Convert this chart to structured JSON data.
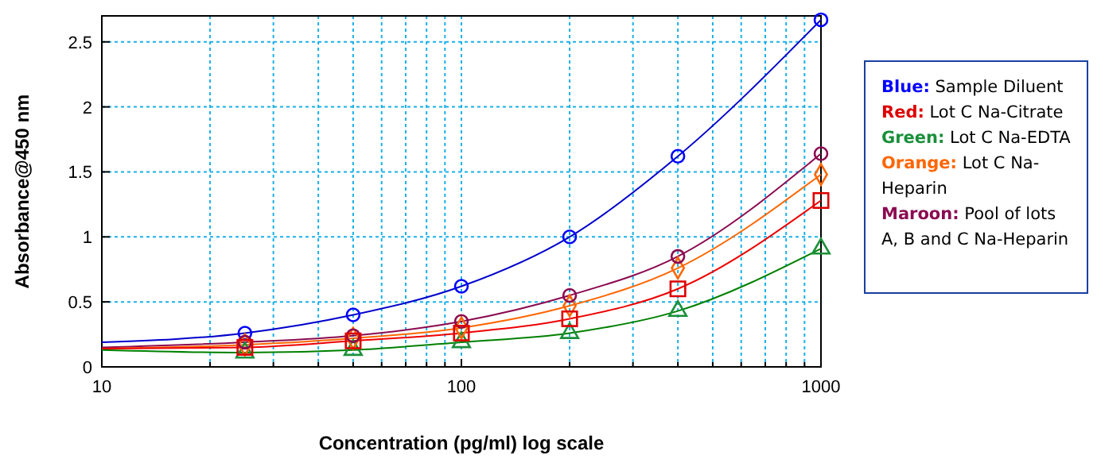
{
  "chart_data": {
    "type": "scatter",
    "xlabel": "Concentration (pg/ml) log scale",
    "ylabel": "Absorbance@450 nm",
    "log": "x",
    "grid": true,
    "legend": "right",
    "xlim": [
      10,
      1000
    ],
    "ylim": [
      0,
      2.7
    ],
    "xticks": [
      10,
      {
        "value": 20,
        "label": null
      },
      {
        "value": 30,
        "label": null
      },
      {
        "value": 40,
        "label": null
      },
      {
        "value": 50,
        "label": null
      },
      {
        "value": 60,
        "label": null
      },
      {
        "value": 70,
        "label": null
      },
      {
        "value": 80,
        "label": null
      },
      {
        "value": 90,
        "label": null
      },
      100,
      {
        "value": 200,
        "label": null
      },
      {
        "value": 300,
        "label": null
      },
      {
        "value": 400,
        "label": null
      },
      {
        "value": 500,
        "label": null
      },
      {
        "value": 600,
        "label": null
      },
      {
        "value": 700,
        "label": null
      },
      {
        "value": 800,
        "label": null
      },
      {
        "value": 900,
        "label": null
      },
      1000
    ],
    "yticks": [
      0,
      0.5,
      1,
      1.5,
      2,
      2.5
    ],
    "series": [
      {
        "type": "line",
        "color": "#0000cc",
        "marker": "none",
        "x": [
          10,
          25,
          50,
          100,
          200,
          400,
          1000
        ],
        "values": [
          0.19,
          0.26,
          0.4,
          0.62,
          1.0,
          1.62,
          2.67
        ]
      },
      {
        "type": "line",
        "color": "#8b0a50",
        "marker": "none",
        "x": [
          10,
          25,
          50,
          100,
          200,
          400,
          1000
        ],
        "values": [
          0.15,
          0.19,
          0.24,
          0.35,
          0.55,
          0.85,
          1.64
        ]
      },
      {
        "type": "line",
        "color": "#ff6600",
        "marker": "none",
        "x": [
          10,
          25,
          50,
          100,
          200,
          400,
          1000
        ],
        "values": [
          0.14,
          0.17,
          0.22,
          0.3,
          0.47,
          0.76,
          1.48
        ]
      },
      {
        "type": "line",
        "color": "#ee0000",
        "marker": "none",
        "x": [
          10,
          25,
          50,
          100,
          200,
          400,
          1000
        ],
        "values": [
          0.14,
          0.15,
          0.2,
          0.26,
          0.37,
          0.6,
          1.28
        ]
      },
      {
        "type": "line",
        "color": "#008000",
        "marker": "none",
        "x": [
          10,
          25,
          50,
          100,
          200,
          400,
          1000
        ],
        "values": [
          0.13,
          0.11,
          0.13,
          0.19,
          0.26,
          0.43,
          0.91
        ]
      },
      {
        "name": "Blue: Sample Diluent",
        "color": "#0000ff",
        "marker": "circle",
        "x": [
          25,
          50,
          100,
          200,
          400,
          1000
        ],
        "values": [
          0.26,
          0.4,
          0.62,
          1.0,
          1.62,
          2.67
        ]
      },
      {
        "name": "Red: Lot C Na-Citrate",
        "color": "#dd0000",
        "marker": "square",
        "x": [
          25,
          50,
          100,
          200,
          400,
          1000
        ],
        "values": [
          0.15,
          0.2,
          0.26,
          0.37,
          0.6,
          1.28
        ]
      },
      {
        "name": "Green: Lot C Na-EDTA",
        "color": "#1a8f3a",
        "marker": "triangle",
        "x": [
          25,
          50,
          100,
          200,
          400,
          1000
        ],
        "values": [
          0.11,
          0.13,
          0.19,
          0.26,
          0.43,
          0.91
        ]
      },
      {
        "name": "Orange: Lot C Na-Heparin",
        "color": "#ff6600",
        "marker": "diamond",
        "x": [
          25,
          50,
          100,
          200,
          400,
          1000
        ],
        "values": [
          0.17,
          0.22,
          0.3,
          0.47,
          0.76,
          1.48
        ]
      },
      {
        "name": "Maroon: Pool of lots A, B and C Na-Heparin",
        "color": "#8b0a50",
        "marker": "circle",
        "x": [
          25,
          50,
          100,
          200,
          400,
          1000
        ],
        "values": [
          0.19,
          0.24,
          0.35,
          0.55,
          0.85,
          1.64
        ]
      }
    ]
  }
}
